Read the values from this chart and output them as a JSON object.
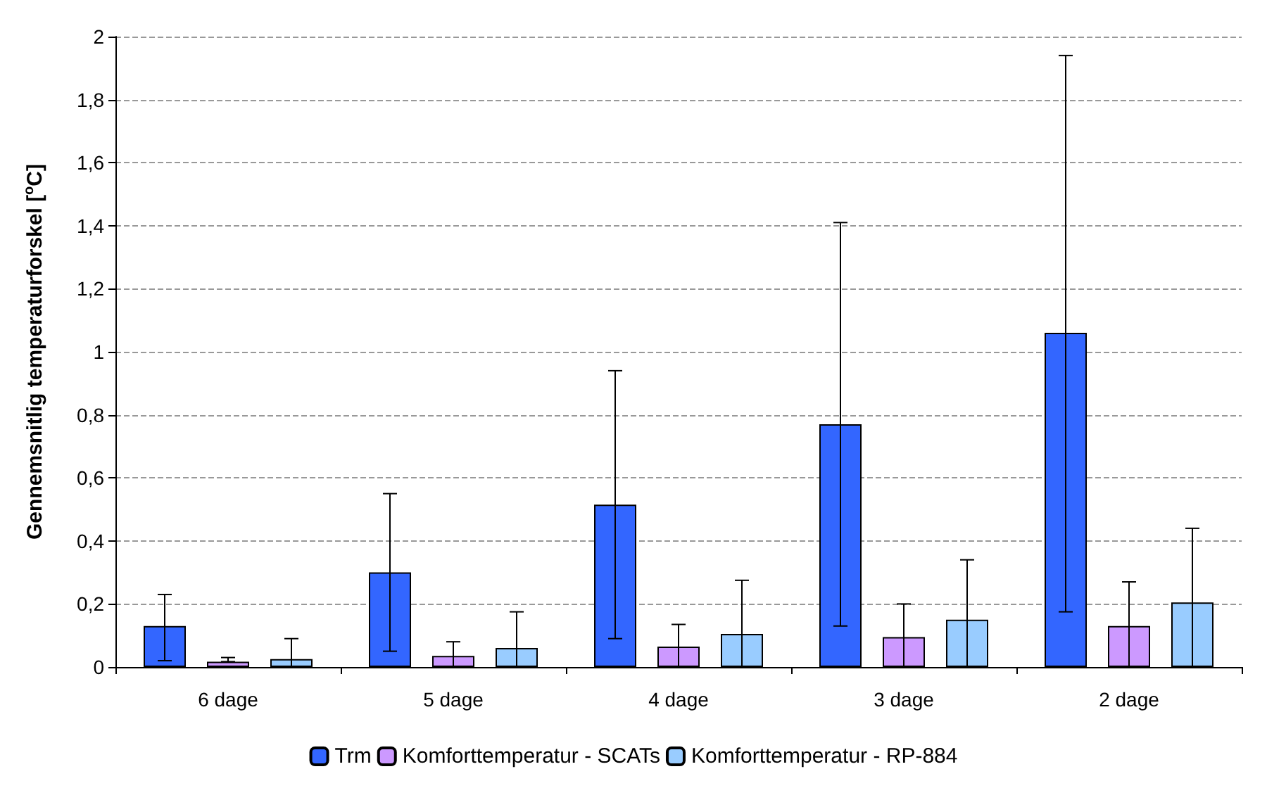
{
  "chart_data": {
    "type": "bar",
    "ylabel": "Gennemsnitlig temperaturforskel [$^{o}$C]",
    "categories": [
      "6 dage",
      "5 dage",
      "4 dage",
      "3 dage",
      "2 dage"
    ],
    "series": [
      {
        "name": "Trm",
        "color": "#3366ff",
        "values": [
          0.13,
          0.3,
          0.515,
          0.77,
          1.06
        ],
        "errors": [
          [
            0.02,
            0.23
          ],
          [
            0.05,
            0.55
          ],
          [
            0.09,
            0.94
          ],
          [
            0.13,
            1.41
          ],
          [
            0.175,
            1.94
          ]
        ]
      },
      {
        "name": "Komforttemperatur - SCATs",
        "color": "#cc99ff",
        "values": [
          0.017,
          0.035,
          0.065,
          0.095,
          0.13
        ],
        "errors": [
          [
            0.017,
            0.03
          ],
          [
            0,
            0.08
          ],
          [
            0,
            0.135
          ],
          [
            0,
            0.2
          ],
          [
            0,
            0.27
          ]
        ]
      },
      {
        "name": "Komforttemperatur - RP-884",
        "color": "#99ccff",
        "values": [
          0.025,
          0.06,
          0.105,
          0.15,
          0.205
        ],
        "errors": [
          [
            0,
            0.09
          ],
          [
            0,
            0.175
          ],
          [
            0,
            0.275
          ],
          [
            0,
            0.34
          ],
          [
            0,
            0.44
          ]
        ]
      }
    ],
    "ylim": [
      0,
      2
    ],
    "yticks": [
      0,
      {
        "value": 0.2,
        "label": "0,2"
      },
      {
        "value": 0.4,
        "label": "0,4"
      },
      {
        "value": 0.6,
        "label": "0,6"
      },
      {
        "value": 0.8,
        "label": "0,8"
      },
      1,
      {
        "value": 1.2,
        "label": "1,2"
      },
      {
        "value": 1.4,
        "label": "1,4"
      },
      {
        "value": 1.6,
        "label": "1,6"
      },
      {
        "value": 1.8,
        "label": "1,8"
      },
      2
    ],
    "grid": "y",
    "legend": "bottom"
  }
}
